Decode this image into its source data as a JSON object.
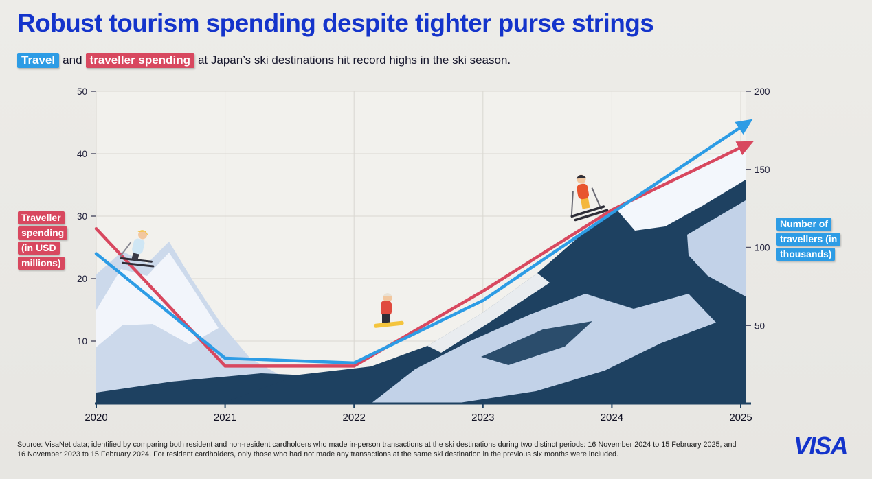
{
  "header": {
    "title": "Robust tourism spending despite tighter purse strings",
    "subtitle": {
      "chip_travel": "Travel",
      "connector": "and",
      "chip_spending": "traveller spending",
      "rest": "at Japan’s ski destinations hit record highs in the ski season."
    }
  },
  "axes": {
    "left_label_lines": [
      "Traveller",
      "spending",
      "(in USD",
      "millions)"
    ],
    "right_label_lines": [
      "Number of",
      "travellers (in",
      "thousands)"
    ],
    "left_ticks": [
      10,
      20,
      30,
      40,
      50
    ],
    "right_ticks": [
      50,
      100,
      150,
      200
    ],
    "x_ticks": [
      "2020",
      "2021",
      "2022",
      "2023",
      "2024",
      "2025"
    ]
  },
  "chart_data": {
    "type": "line",
    "title": "Robust tourism spending despite tighter purse strings",
    "x": [
      2020,
      2021,
      2022,
      2023,
      2024,
      2025
    ],
    "series": [
      {
        "name": "Traveller spending (in USD millions)",
        "axis": "left",
        "color": "#d8485f",
        "values": [
          28,
          6,
          6,
          18,
          31,
          41
        ]
      },
      {
        "name": "Number of travellers (in thousands)",
        "axis": "right",
        "color": "#2d9ce5",
        "values": [
          96,
          29,
          26,
          66,
          122,
          177
        ]
      }
    ],
    "left_ylim": [
      0,
      50
    ],
    "right_ylim": [
      0,
      200
    ],
    "grid": true,
    "legend_position": "axis-side-labels",
    "annotations": [
      "both lines end in arrowheads pointing up-right",
      "ski-mountain illustration behind lines"
    ]
  },
  "footer": {
    "source_text": "Source: VisaNet data; identified by comparing both resident and non-resident cardholders who made in-person transactions at the ski destinations during two distinct periods: 16 November 2024 to 15 February 2025, and 16 November 2023 to 15 February 2024. For resident cardholders, only those who had not made any transactions at the same ski destination in the previous six months were included.",
    "visa_logo": "VISA"
  },
  "colors": {
    "title_blue": "#1434cb",
    "spending_red": "#d8485f",
    "travellers_blue": "#2d9ce5",
    "mountain_navy": "#1e4161",
    "mountain_light": "#ccd9eb",
    "snow_white": "#f3f7fc"
  }
}
